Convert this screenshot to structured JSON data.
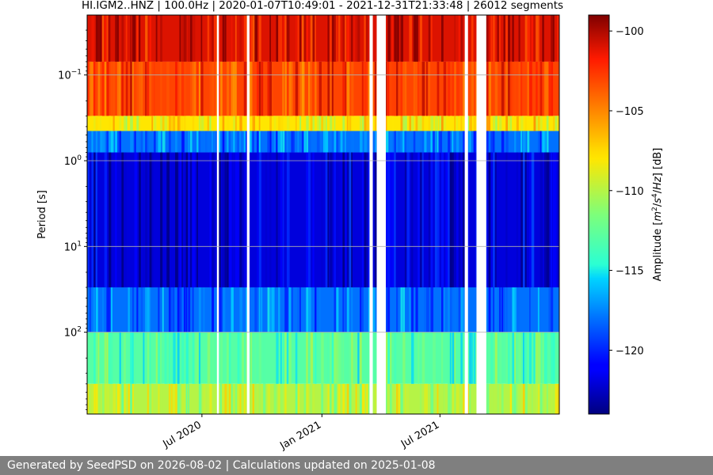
{
  "chart_data": {
    "type": "heatmap",
    "title": "HI.IGM2..HNZ | 100.0Hz | 2020-01-07T10:49:01 - 2021-12-31T21:33:48 | 26012 segments",
    "xlabel": "",
    "ylabel": "Period [s]",
    "x_range": [
      "2020-01-07",
      "2021-12-31"
    ],
    "x_ticks": [
      {
        "date": "2020-07-01",
        "label": "Jul 2020"
      },
      {
        "date": "2021-01-01",
        "label": "Jan 2021"
      },
      {
        "date": "2021-07-01",
        "label": "Jul 2021"
      }
    ],
    "y_scale": "log",
    "y_inverted": true,
    "y_range": [
      0.02,
      900
    ],
    "y_ticks": [
      {
        "value": 0.1,
        "base": "10",
        "exp": "−1"
      },
      {
        "value": 1,
        "base": "10",
        "exp": "0"
      },
      {
        "value": 10,
        "base": "10",
        "exp": "1"
      },
      {
        "value": 100,
        "base": "10",
        "exp": "2"
      }
    ],
    "grid": true,
    "colormap": "jet",
    "colorbar": {
      "label_parts": [
        "Amplitude [",
        "m",
        "2",
        "/",
        "s",
        "4",
        "/",
        "Hz",
        "] [dB]"
      ],
      "range": [
        -124,
        -99
      ],
      "ticks": [
        -100,
        -105,
        -110,
        -115,
        -120
      ],
      "tick_labels": [
        "−100",
        "−105",
        "−110",
        "−115",
        "−120"
      ]
    },
    "bands": [
      {
        "period_range": [
          0.02,
          0.07
        ],
        "amplitude_db": -101
      },
      {
        "period_range": [
          0.07,
          0.3
        ],
        "amplitude_db": -103
      },
      {
        "period_range": [
          0.3,
          0.45
        ],
        "amplitude_db": -108
      },
      {
        "period_range": [
          0.45,
          0.8
        ],
        "amplitude_db": -118
      },
      {
        "period_range": [
          0.8,
          30
        ],
        "amplitude_db": -122
      },
      {
        "period_range": [
          30,
          100
        ],
        "amplitude_db": -118
      },
      {
        "period_range": [
          100,
          400
        ],
        "amplitude_db": -113
      },
      {
        "period_range": [
          400,
          900
        ],
        "amplitude_db": -110
      }
    ],
    "data_gaps": [
      [
        "2020-07-24",
        "2020-07-27"
      ],
      [
        "2020-09-08",
        "2020-09-12"
      ],
      [
        "2021-03-15",
        "2021-03-20"
      ],
      [
        "2021-03-26",
        "2021-04-09"
      ],
      [
        "2021-08-08",
        "2021-08-13"
      ],
      [
        "2021-08-26",
        "2021-09-10"
      ]
    ]
  },
  "footer": {
    "text": "Generated by SeedPSD on 2026-08-02 | Calculations updated on 2025-01-08"
  }
}
